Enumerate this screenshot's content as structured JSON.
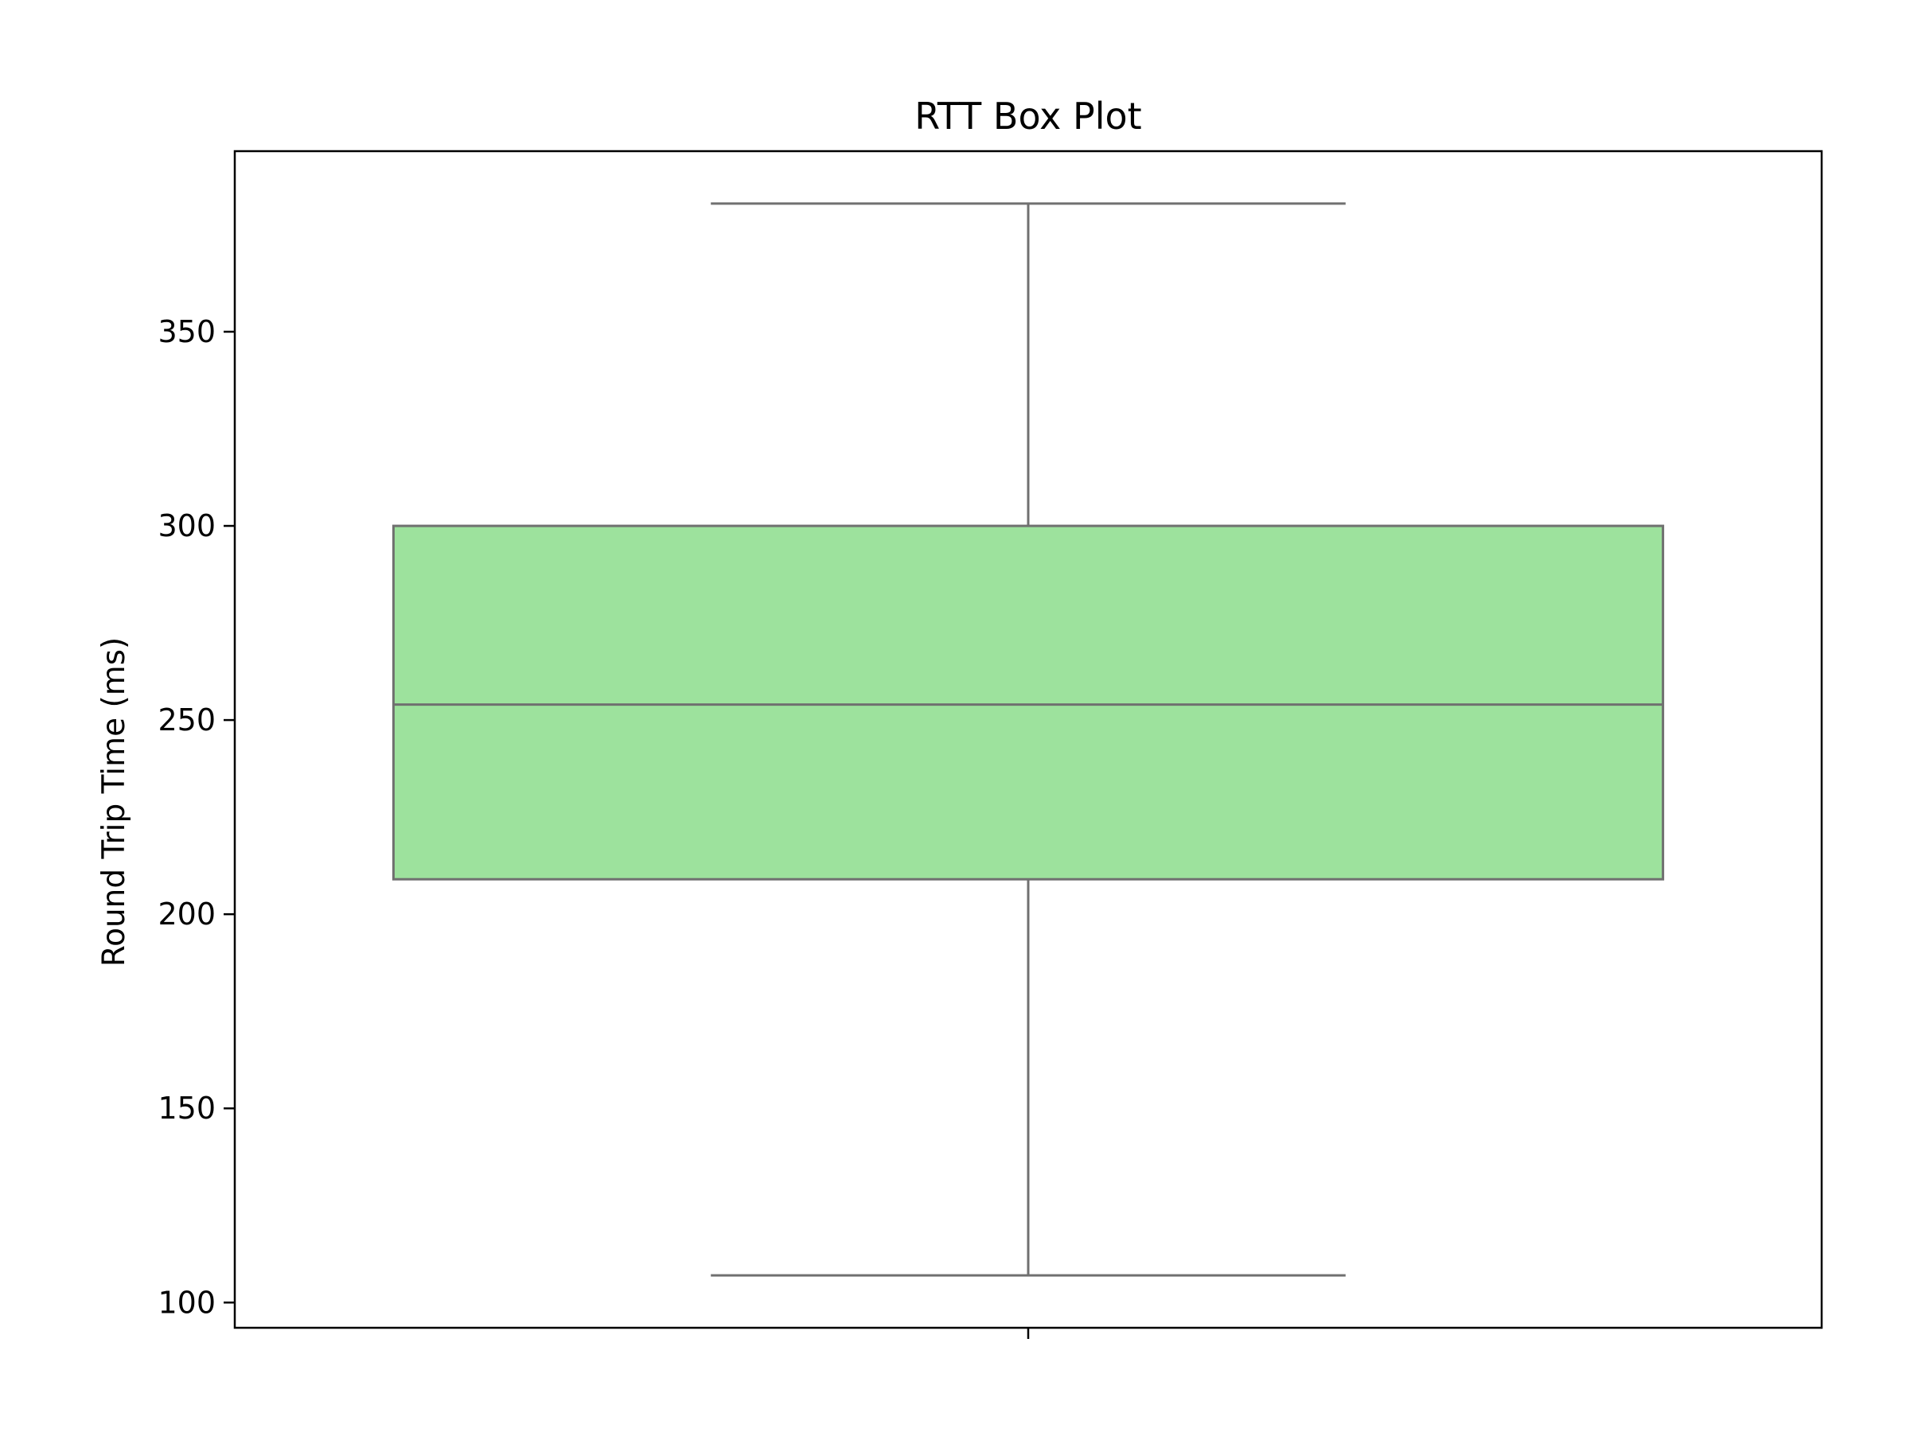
{
  "chart_data": {
    "type": "box",
    "title": "RTT Box Plot",
    "xlabel": "",
    "ylabel": "Round Trip Time (ms)",
    "ylim": [
      93.5,
      396.5
    ],
    "y_ticks": [
      100,
      150,
      200,
      250,
      300,
      350
    ],
    "x_ticks": [
      ""
    ],
    "grid": false,
    "legend": "none",
    "series": [
      {
        "whisker_low": 107,
        "q1": 209,
        "median": 254,
        "q3": 300,
        "whisker_high": 383
      }
    ],
    "colors": {
      "box_fill": "#9de29d",
      "box_line": "#707070",
      "axes": "#000000"
    }
  }
}
